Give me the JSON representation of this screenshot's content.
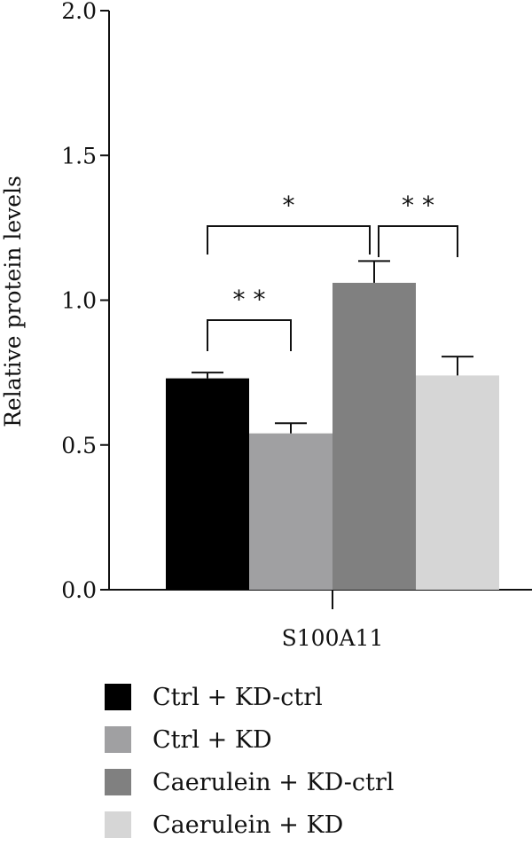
{
  "chart_data": {
    "type": "bar",
    "title": "",
    "xlabel": "",
    "ylabel": "Relative protein levels",
    "ylim": [
      0,
      2.0
    ],
    "yticks": [
      "0.0",
      "0.5",
      "1.0",
      "1.5",
      "2.0"
    ],
    "categories": [
      "S100A11"
    ],
    "grid": false,
    "legend_position": "bottom",
    "series": [
      {
        "name": "Ctrl + KD-ctrl",
        "color": "#000000",
        "values": [
          0.73
        ],
        "error": [
          0.02
        ]
      },
      {
        "name": "Ctrl + KD",
        "color": "#a0a0a2",
        "values": [
          0.54
        ],
        "error": [
          0.035
        ]
      },
      {
        "name": "Caerulein + KD-ctrl",
        "color": "#808080",
        "values": [
          1.06
        ],
        "error": [
          0.075
        ]
      },
      {
        "name": "Caerulein + KD",
        "color": "#d6d6d6",
        "values": [
          0.74
        ],
        "error": [
          0.065
        ]
      }
    ],
    "significance": [
      {
        "from": 0,
        "to": 1,
        "label": "* *"
      },
      {
        "from": 0,
        "to": 2,
        "label": "*"
      },
      {
        "from": 2,
        "to": 3,
        "label": "* *"
      }
    ]
  }
}
